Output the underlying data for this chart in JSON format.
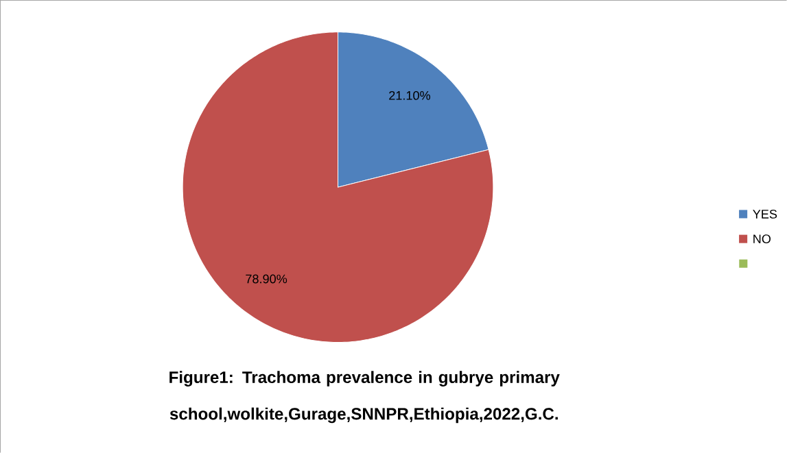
{
  "chart_data": {
    "type": "pie",
    "title": "Figure1: Trachoma prevalence in gubrye primary school,wolkite,Gurage,SNNPR,Ethiopia,2022,G.C.",
    "categories": [
      "YES",
      "NO",
      null
    ],
    "values": [
      21.1,
      78.9,
      0
    ],
    "colors": [
      "#4f81bd",
      "#c0504d",
      "#9bbb59"
    ],
    "value_labels": [
      "21.10%",
      "78.90%",
      null
    ],
    "legend": "right"
  }
}
